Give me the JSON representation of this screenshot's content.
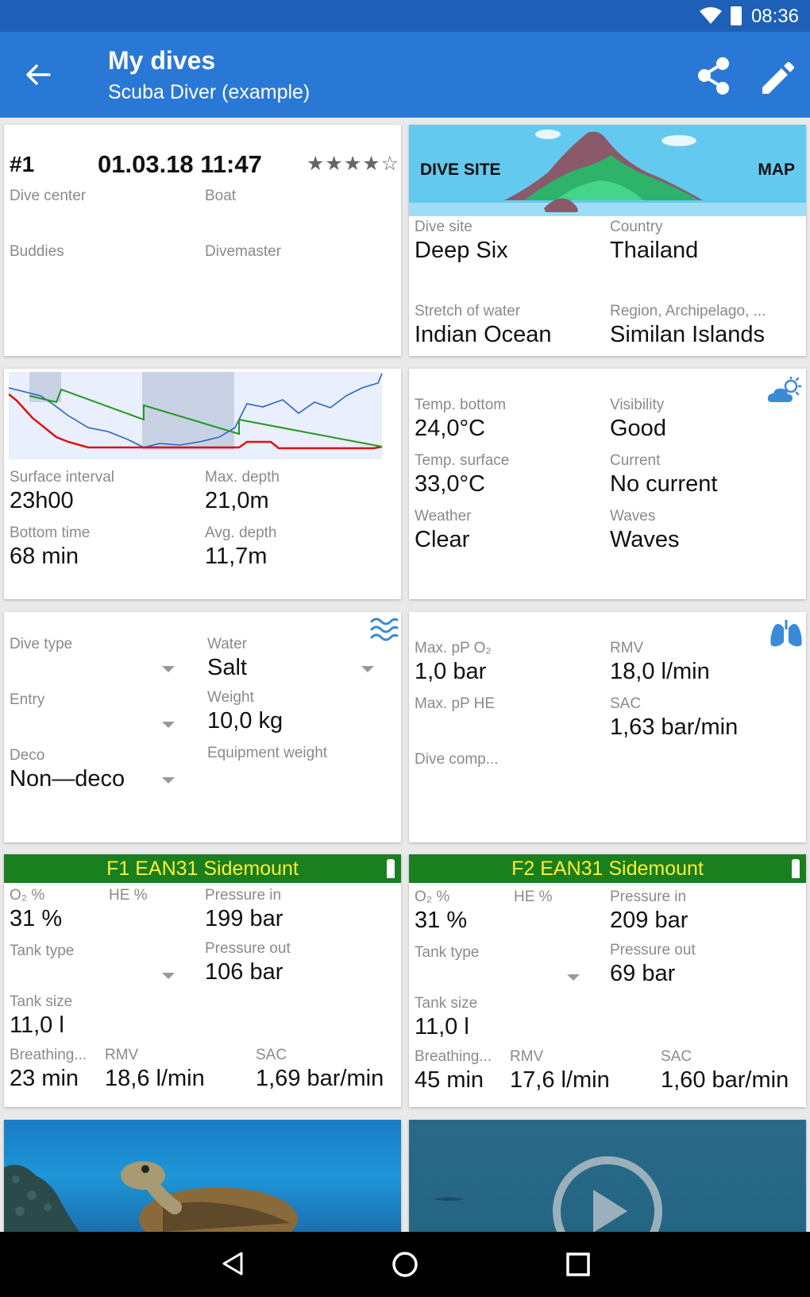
{
  "status": {
    "time": "08:36"
  },
  "appbar": {
    "title": "My dives",
    "subtitle": "Scuba Diver (example)"
  },
  "dive": {
    "number": "#1",
    "datetime": "01.03.18 11:47",
    "rating": 4,
    "rating_stars": "★★★★☆",
    "dive_center_label": "Dive center",
    "boat_label": "Boat",
    "buddies_label": "Buddies",
    "divemaster_label": "Divemaster"
  },
  "site": {
    "dive_site_banner": "DIVE SITE",
    "map_label": "MAP",
    "dive_site_label": "Dive site",
    "dive_site": "Deep Six",
    "country_label": "Country",
    "country": "Thailand",
    "stretch_label": "Stretch of water",
    "stretch": "Indian Ocean",
    "region_label": "Region, Archipelago, ...",
    "region": "Similan Islands"
  },
  "profile": {
    "surface_interval_label": "Surface interval",
    "surface_interval": "23h00",
    "max_depth_label": "Max. depth",
    "max_depth": "21,0m",
    "bottom_time_label": "Bottom time",
    "bottom_time": "68 min",
    "avg_depth_label": "Avg. depth",
    "avg_depth": "11,7m"
  },
  "conditions": {
    "temp_bottom_label": "Temp. bottom",
    "temp_bottom": "24,0°C",
    "visibility_label": "Visibility",
    "visibility": "Good",
    "temp_surface_label": "Temp. surface",
    "temp_surface": "33,0°C",
    "current_label": "Current",
    "current": "No current",
    "weather_label": "Weather",
    "weather": "Clear",
    "waves_label": "Waves",
    "waves": "Waves"
  },
  "divetype": {
    "dive_type_label": "Dive type",
    "water_label": "Water",
    "water": "Salt",
    "entry_label": "Entry",
    "weight_label": "Weight",
    "weight": "10,0 kg",
    "deco_label": "Deco",
    "deco": "Non—deco",
    "equipment_weight_label": "Equipment weight"
  },
  "gas": {
    "max_po2_label": "Max. pP O₂",
    "max_po2": "1,0 bar",
    "rmv_label": "RMV",
    "rmv": "18,0 l/min",
    "max_phe_label": "Max. pP HE",
    "sac_label": "SAC",
    "sac": "1,63 bar/min",
    "dive_comp_label": "Dive comp..."
  },
  "tanks": [
    {
      "header": "F1 EAN31 Sidemount",
      "o2_label": "O₂ %",
      "o2": "31 %",
      "he_label": "HE %",
      "pin_label": "Pressure in",
      "pin": "199 bar",
      "tank_type_label": "Tank type",
      "pout_label": "Pressure out",
      "pout": "106 bar",
      "size_label": "Tank size",
      "size": "11,0 l",
      "breathing_label": "Breathing...",
      "breathing": "23 min",
      "rmv_label": "RMV",
      "rmv": "18,6 l/min",
      "sac_label": "SAC",
      "sac": "1,69 bar/min"
    },
    {
      "header": "F2 EAN31 Sidemount",
      "o2_label": "O₂ %",
      "o2": "31 %",
      "he_label": "HE %",
      "pin_label": "Pressure in",
      "pin": "209 bar",
      "tank_type_label": "Tank type",
      "pout_label": "Pressure out",
      "pout": "69 bar",
      "size_label": "Tank size",
      "size": "11,0 l",
      "breathing_label": "Breathing...",
      "breathing": "45 min",
      "rmv_label": "RMV",
      "rmv": "17,6 l/min",
      "sac_label": "SAC",
      "sac": "1,60 bar/min"
    }
  ],
  "colors": {
    "statusbar": "#1e5fb8",
    "appbar": "#2a78d6",
    "tank_header_bg": "#1a7f1e",
    "tank_header_text": "#ffee33",
    "profile_depth": "#2a62c8",
    "profile_deco": "#e01010",
    "profile_ascent": "#1f9a1f"
  }
}
